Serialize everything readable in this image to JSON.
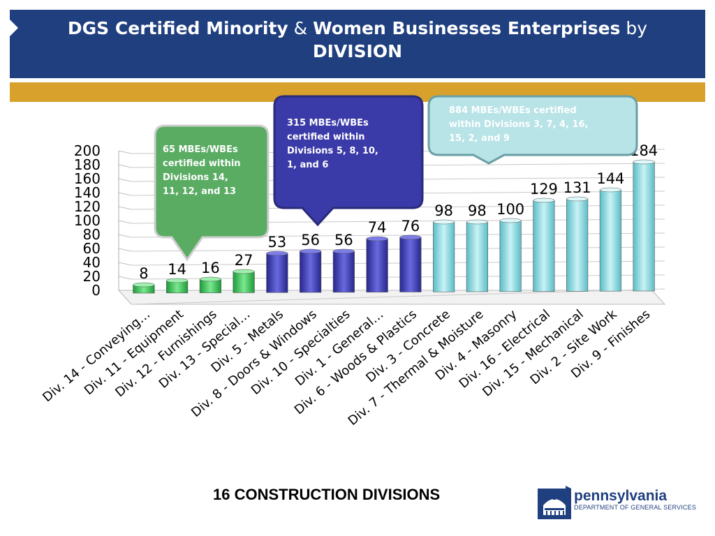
{
  "header": {
    "title_part1": "DGS Certified Minority",
    "title_amp": " & ",
    "title_part2": "Women Businesses Enterprises",
    "title_by": " by",
    "title_line2": "DIVISION"
  },
  "footer": {
    "title": "16 CONSTRUCTION DIVISIONS",
    "logo_name": "pennsylvania",
    "logo_sub": "DEPARTMENT OF GENERAL SERVICES"
  },
  "colors": {
    "header": "#1f3f7f",
    "gold": "#d8a12b",
    "green_bar": "#2dbb4b",
    "blue_bar": "#3333a8",
    "cyan_bar": "#7fd4dc",
    "green_callout": "#5aac63",
    "blue_callout": "#3a3aa8",
    "cyan_callout": "#b8e3e7"
  },
  "chart_data": {
    "type": "bar",
    "categories": [
      "Div. 14 - Conveying…",
      "Div. 11 - Equipment",
      "Div. 12 - Furnishings",
      "Div. 13 - Special…",
      "Div. 5 - Metals",
      "Div. 8 - Doors & Windows",
      "Div. 10 - Specialties",
      "Div. 1 - General…",
      "Div. 6 - Woods & Plastics",
      "Div. 3 - Concrete",
      "Div. 7 - Thermal & Moisture",
      "Div. 4 - Masonry",
      "Div. 16 - Electrical",
      "Div. 15 - Mechanical",
      "Div. 2 - Site Work",
      "Div. 9 - Finishes"
    ],
    "values": [
      8,
      14,
      16,
      27,
      53,
      56,
      56,
      74,
      76,
      98,
      98,
      100,
      129,
      131,
      144,
      184
    ],
    "value_labels": [
      "8",
      "14",
      "16",
      "27",
      "53",
      "56",
      "56",
      "74",
      "76",
      "98",
      "98",
      "100",
      "129",
      "131",
      "144",
      "184"
    ],
    "groups": [
      "green",
      "green",
      "green",
      "green",
      "blue",
      "blue",
      "blue",
      "blue",
      "blue",
      "cyan",
      "cyan",
      "cyan",
      "cyan",
      "cyan",
      "cyan",
      "cyan"
    ],
    "ylim": [
      0,
      200
    ],
    "yticks": [
      0,
      20,
      40,
      60,
      80,
      100,
      120,
      140,
      160,
      180,
      200
    ],
    "ytick_labels": [
      "0",
      "20",
      "40",
      "60",
      "80",
      "100",
      "120",
      "140",
      "160",
      "180",
      "200"
    ],
    "grid": true,
    "annotations": [
      {
        "group": "green",
        "text": "65 MBEs/WBEs certified within Divisions 14, 11, 12,  and 13",
        "lines": [
          "65 MBEs/WBEs",
          "certified within",
          "Divisions 14,",
          "11, 12,  and 13"
        ]
      },
      {
        "group": "blue",
        "text": "315 MBEs/WBEs certified within Divisions 5, 8, 10, 1, and 6",
        "lines": [
          "315 MBEs/WBEs",
          "certified within",
          "Divisions 5, 8, 10,",
          "1, and 6"
        ]
      },
      {
        "group": "cyan",
        "text": "884 MBEs/WBEs certified within Divisions 3, 7, 4, 16, 15, 2, and 9",
        "lines": [
          "884 MBEs/WBEs certified",
          "within Divisions 3, 7, 4, 16,",
          "15, 2, and 9"
        ]
      }
    ]
  }
}
